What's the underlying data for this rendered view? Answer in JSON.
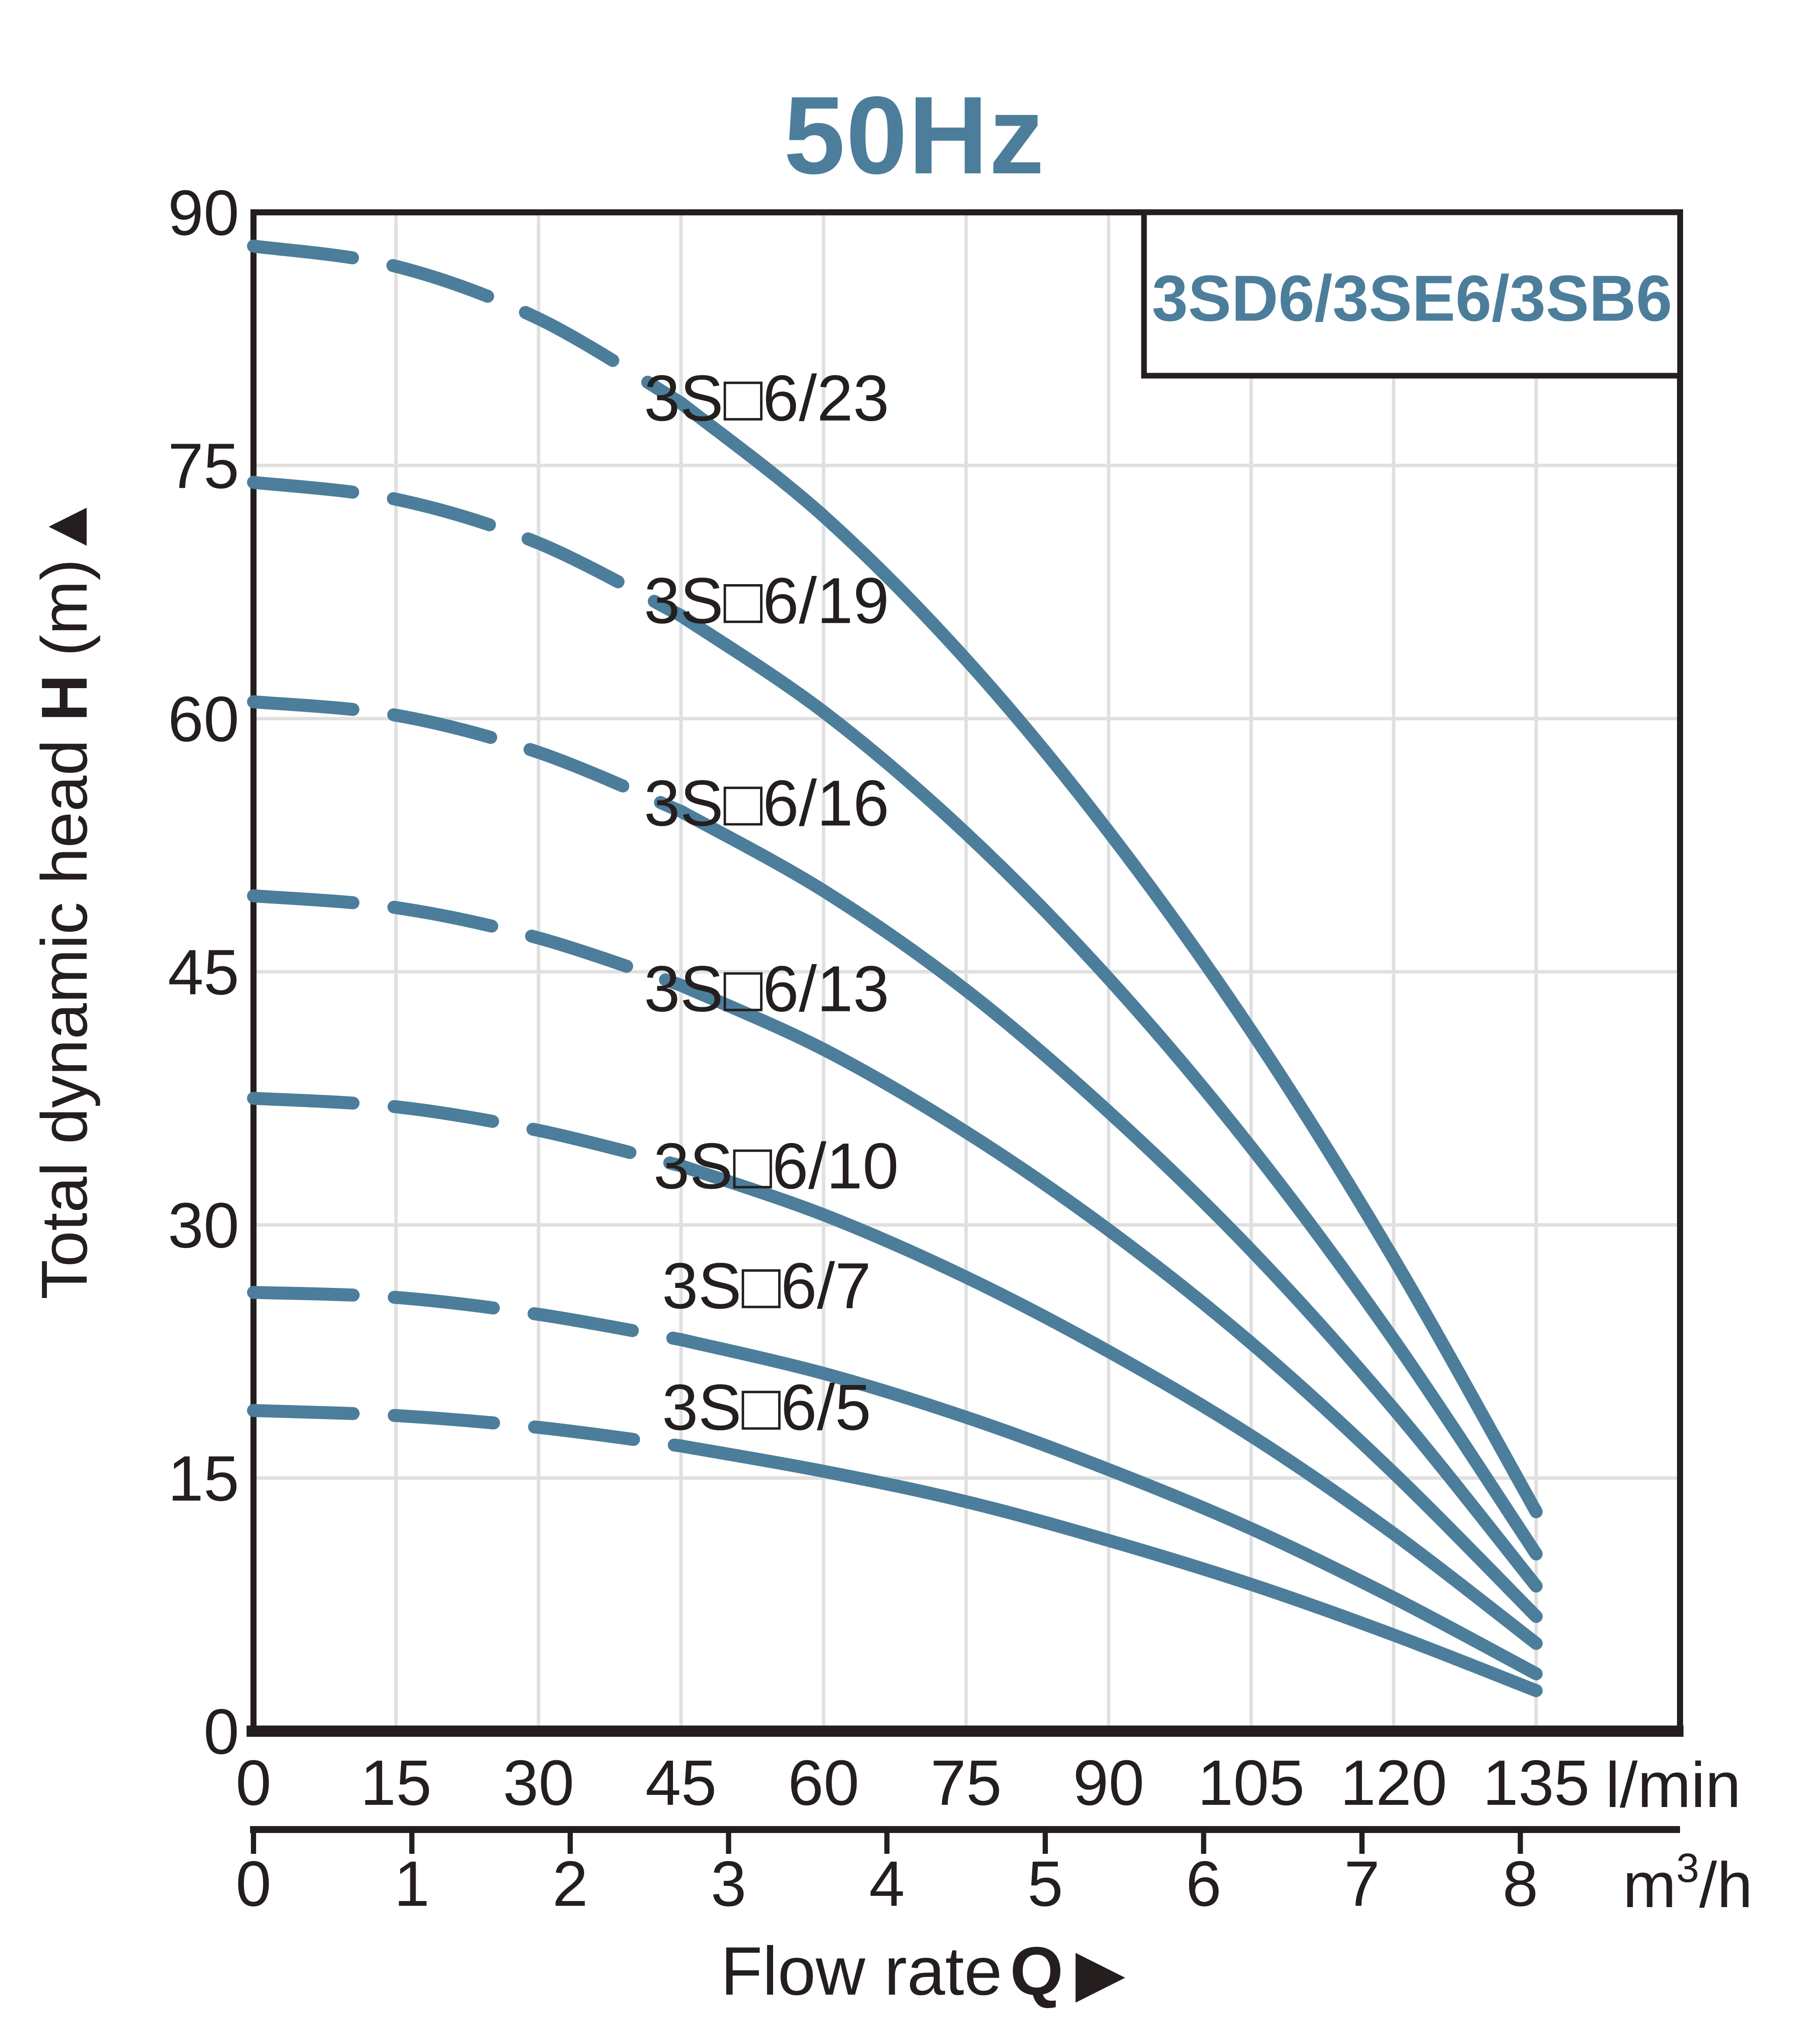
{
  "title": "50Hz",
  "colors": {
    "accent": "#4c7e9b",
    "text": "#241f1e",
    "frame": "#241f1e",
    "grid": "#e0e0e0",
    "background": "#ffffff"
  },
  "axis_labels": {
    "y_pre": "Total dynamic head",
    "y_sym": "H",
    "y_unit": "(m)",
    "y_arrow": "▲",
    "x_pre": "Flow rate",
    "x_sym": "Q",
    "x_arrow": "▶",
    "x1_unit": "l/min",
    "x2_unit_base": "m",
    "x2_unit_exp": "3",
    "x2_unit_tail": "/h"
  },
  "chart_data": {
    "type": "line",
    "title": "50Hz",
    "xlabel": "Flow rate Q",
    "ylabel": "Total dynamic head H (m)",
    "grid": true,
    "legend": {
      "text": "3SD6/3SE6/3SB6",
      "position": "top-right"
    },
    "x_axis_primary": {
      "unit": "l/min",
      "ticks": [
        0,
        15,
        30,
        45,
        60,
        75,
        90,
        105,
        120,
        135
      ],
      "range": [
        0,
        150
      ]
    },
    "x_axis_secondary": {
      "unit": "m3/h",
      "ticks": [
        0,
        1,
        2,
        3,
        4,
        5,
        6,
        7,
        8
      ]
    },
    "y_axis": {
      "unit": "m",
      "ticks": [
        0,
        15,
        30,
        45,
        60,
        75,
        90
      ],
      "range": [
        0,
        90
      ]
    },
    "line_style": {
      "color": "#4c7e9b",
      "width": 30,
      "dashed_below_q_lmin": 45
    },
    "q_lmin": [
      0,
      15,
      30,
      45,
      60,
      75,
      90,
      105,
      120,
      135
    ],
    "series": [
      {
        "name": "3S□6/23",
        "h_m": [
          88,
          86.8,
          83.7,
          78.7,
          72.0,
          63.5,
          53.3,
          41.5,
          28.0,
          13.0
        ],
        "label_q": 54,
        "label_h": 79.0
      },
      {
        "name": "3S□6/19",
        "h_m": [
          74,
          73.0,
          70.4,
          66.1,
          60.4,
          53.2,
          44.6,
          34.6,
          23.2,
          10.5
        ],
        "label_q": 54,
        "label_h": 67.0
      },
      {
        "name": "3S□6/16",
        "h_m": [
          61,
          60.2,
          58.0,
          54.5,
          49.8,
          43.9,
          36.7,
          28.5,
          19.1,
          8.6
        ],
        "label_q": 54,
        "label_h": 55.0
      },
      {
        "name": "3S□6/13",
        "h_m": [
          49.5,
          48.8,
          47.0,
          44.2,
          40.4,
          35.5,
          29.7,
          23.0,
          15.3,
          6.8
        ],
        "label_q": 54,
        "label_h": 44.0
      },
      {
        "name": "3S□6/10",
        "h_m": [
          37.5,
          37.0,
          35.6,
          33.5,
          30.6,
          26.9,
          22.5,
          17.5,
          11.7,
          5.2
        ],
        "label_q": 55,
        "label_h": 33.5
      },
      {
        "name": "3S□6/7",
        "h_m": [
          26,
          25.7,
          24.7,
          23.2,
          21.2,
          18.6,
          15.5,
          12.0,
          7.9,
          3.4
        ],
        "label_q": 54,
        "label_h": 26.4
      },
      {
        "name": "3S□6/5",
        "h_m": [
          19,
          18.7,
          18.0,
          16.9,
          15.4,
          13.6,
          11.3,
          8.7,
          5.7,
          2.4
        ],
        "label_q": 54,
        "label_h": 19.2
      }
    ]
  }
}
